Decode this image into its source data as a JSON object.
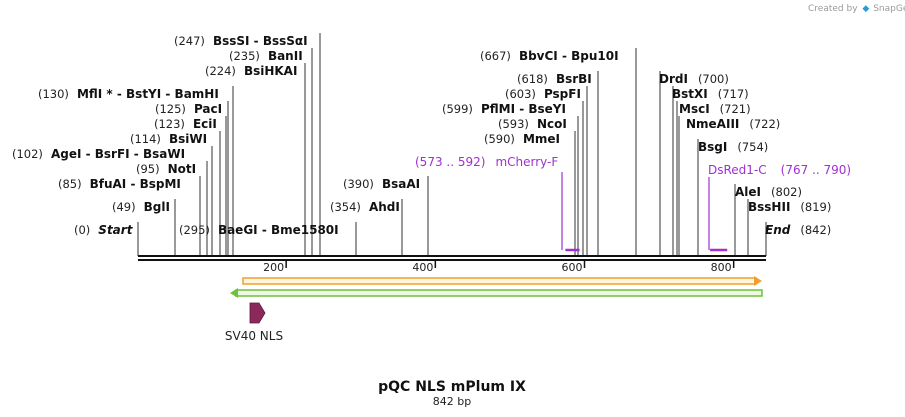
{
  "credit": {
    "prefix": "Created by",
    "brand": "SnapGene"
  },
  "map": {
    "title": "pQC NLS mPlum IX",
    "length_label": "842 bp",
    "length_bp": 842,
    "ruler_ticks": [
      {
        "bp": 200,
        "label": "200"
      },
      {
        "bp": 400,
        "label": "400"
      },
      {
        "bp": 600,
        "label": "600"
      },
      {
        "bp": 800,
        "label": "800"
      }
    ]
  },
  "sites": [
    {
      "id": "start",
      "pos": "(0)",
      "name": "Start",
      "italic": true,
      "bp": 0
    },
    {
      "id": "bgli",
      "pos": "(49)",
      "name": "BglI",
      "bp": 49
    },
    {
      "id": "bfuai",
      "pos": "(85)",
      "name": "BfuAI  - BspMI",
      "bp": 85
    },
    {
      "id": "noti",
      "pos": "(95)",
      "name": "NotI",
      "bp": 95
    },
    {
      "id": "agei",
      "pos": "(102)",
      "name": "AgeI   - BsrFI  - BsaWI",
      "bp": 102
    },
    {
      "id": "bsiwi",
      "pos": "(114)",
      "name": "BsiWI",
      "bp": 114
    },
    {
      "id": "ecii",
      "pos": "(123)",
      "name": "EciI",
      "bp": 123
    },
    {
      "id": "paci",
      "pos": "(125)",
      "name": "PacI",
      "bp": 125
    },
    {
      "id": "mfli",
      "pos": "(130)",
      "name": "MflI *  - BstYI  - BamHI",
      "bp": 130
    },
    {
      "id": "bsihkai",
      "pos": "(224)",
      "name": "BsiHKAI",
      "bp": 224
    },
    {
      "id": "banii",
      "pos": "(235)",
      "name": "BanII",
      "bp": 235
    },
    {
      "id": "bsssi",
      "pos": "(247)",
      "name": "BssSI  - BssSαI",
      "bp": 247
    },
    {
      "id": "baegi",
      "pos": "(295)",
      "name": "BaeGI   - Bme1580I",
      "bp": 295
    },
    {
      "id": "ahdi",
      "pos": "(354)",
      "name": "AhdI",
      "bp": 354
    },
    {
      "id": "bsaai",
      "pos": "(390)",
      "name": "BsaAI",
      "bp": 390
    },
    {
      "id": "bbvci",
      "pos": "(667)",
      "name": "BbvCI   - Bpu10I",
      "bp": 667
    },
    {
      "id": "bsrbi",
      "pos": "(618)",
      "name": "BsrBI",
      "bp": 618
    },
    {
      "id": "pspfi",
      "pos": "(603)",
      "name": "PspFI",
      "bp": 603
    },
    {
      "id": "pflmi",
      "pos": "(599)",
      "name": "PflMI  - BseYI",
      "bp": 599
    },
    {
      "id": "ncoi",
      "pos": "(593)",
      "name": "NcoI",
      "bp": 593
    },
    {
      "id": "mmei",
      "pos": "(590)",
      "name": "MmeI",
      "bp": 590
    },
    {
      "id": "drdi",
      "pos": "(700)",
      "name": "DrdI",
      "bp": 700
    },
    {
      "id": "bstxi",
      "pos": "(717)",
      "name": "BstXI",
      "bp": 717
    },
    {
      "id": "msci",
      "pos": "(721)",
      "name": "MscI",
      "bp": 721
    },
    {
      "id": "nmeaiii",
      "pos": "(722)",
      "name": "NmeAIII",
      "bp": 722
    },
    {
      "id": "bsgi",
      "pos": "(754)",
      "name": "BsgI",
      "bp": 754
    },
    {
      "id": "alei",
      "pos": "(802)",
      "name": "AleI",
      "bp": 802
    },
    {
      "id": "bsshii",
      "pos": "(819)",
      "name": "BssHII",
      "bp": 819
    },
    {
      "id": "end",
      "pos": "(842)",
      "name": "End",
      "italic": true,
      "bp": 842
    }
  ],
  "primers": [
    {
      "id": "mcherry-f",
      "range": "(573 .. 592)",
      "name": "mCherry-F",
      "start_bp": 573,
      "end_bp": 592,
      "color": "#a030d0"
    },
    {
      "id": "dsred1-c",
      "range": "(767 .. 790)",
      "name": "DsRed1-C",
      "start_bp": 767,
      "end_bp": 790,
      "color": "#a030d0"
    }
  ],
  "features": [
    {
      "id": "orange-orf",
      "direction": "forward",
      "start_bp": 0,
      "end_bp": 842,
      "color": "#f0a030",
      "fill": "#fff5d8"
    },
    {
      "id": "green-orf",
      "direction": "reverse",
      "start_bp": 0,
      "end_bp": 842,
      "color": "#6cc23a",
      "fill": "#eef8e4"
    },
    {
      "id": "sv40-nls",
      "name": "SV40 NLS",
      "direction": "forward",
      "start_bp": 112,
      "end_bp": 133,
      "color": "#8b2a5a"
    }
  ]
}
